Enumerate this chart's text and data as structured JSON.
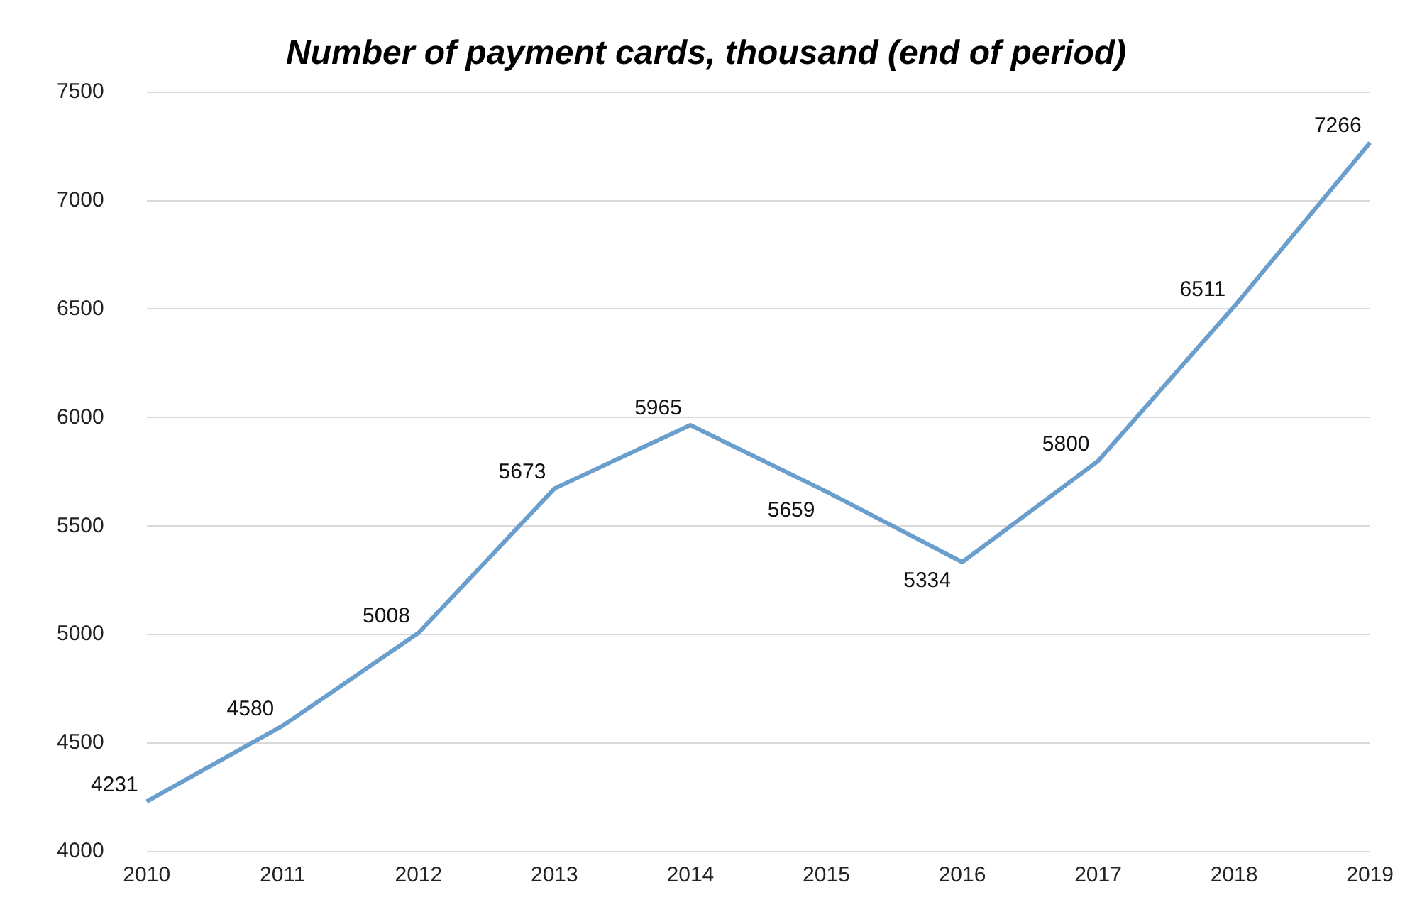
{
  "chart_data": {
    "type": "line",
    "title": "Number of payment cards, thousand (end of period)",
    "categories": [
      "2010",
      "2011",
      "2012",
      "2013",
      "2014",
      "2015",
      "2016",
      "2017",
      "2018",
      "2019"
    ],
    "series": [
      {
        "color": "#6a9fcd",
        "values": [
          4231,
          4580,
          5008,
          5673,
          5965,
          5659,
          5334,
          5800,
          6511,
          7266
        ]
      }
    ],
    "ylim": [
      4000,
      7500
    ],
    "yticks": [
      4000,
      4500,
      5000,
      5500,
      6000,
      6500,
      7000,
      7500
    ],
    "grid": "y",
    "data_labels": true,
    "marker": "none",
    "line_style": "solid",
    "legend": false
  }
}
